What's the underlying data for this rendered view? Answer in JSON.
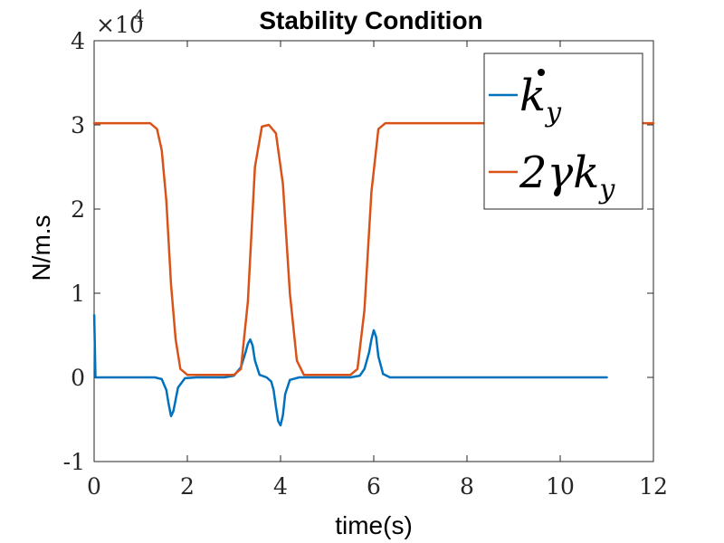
{
  "chart_data": {
    "type": "line",
    "title": "Stability Condition",
    "xlabel": "time(s)",
    "ylabel": "N/m.s",
    "xlim": [
      0,
      12
    ],
    "ylim": [
      -1,
      4
    ],
    "y_multiplier_label": "×10",
    "y_multiplier_exponent": "4",
    "xticks": [
      "0",
      "2",
      "4",
      "6",
      "8",
      "10",
      "12"
    ],
    "yticks": [
      "-1",
      "0",
      "1",
      "2",
      "3",
      "4"
    ],
    "legend_position": "top-right",
    "grid": false,
    "series": [
      {
        "name": "k̇_y",
        "legend_main": "k",
        "legend_sub": "y",
        "color": "#0072BD",
        "x": [
          0,
          0.001,
          0.03,
          0.1,
          0.5,
          1.0,
          1.3,
          1.45,
          1.55,
          1.6,
          1.65,
          1.7,
          1.8,
          1.95,
          2.2,
          2.8,
          3.0,
          3.15,
          3.25,
          3.3,
          3.35,
          3.4,
          3.45,
          3.55,
          3.7,
          3.8,
          3.85,
          3.9,
          3.95,
          4.0,
          4.05,
          4.1,
          4.2,
          4.4,
          5.0,
          5.5,
          5.7,
          5.8,
          5.9,
          5.95,
          6.0,
          6.05,
          6.1,
          6.2,
          6.35,
          6.6,
          8.0,
          10.0,
          11.0
        ],
        "values": [
          0.74,
          0.74,
          0.0,
          0.0,
          0.0,
          0.0,
          0.0,
          -0.02,
          -0.15,
          -0.32,
          -0.46,
          -0.4,
          -0.12,
          -0.01,
          0.0,
          0.0,
          0.02,
          0.12,
          0.3,
          0.4,
          0.45,
          0.38,
          0.2,
          0.03,
          0.0,
          -0.05,
          -0.15,
          -0.35,
          -0.52,
          -0.57,
          -0.45,
          -0.2,
          -0.03,
          0.0,
          0.0,
          0.0,
          0.02,
          0.1,
          0.3,
          0.45,
          0.56,
          0.48,
          0.25,
          0.04,
          0.0,
          0.0,
          0.0,
          0.0,
          0.0
        ]
      },
      {
        "name": "2γk_y",
        "legend_main": "2γk",
        "legend_sub": "y",
        "color": "#D95319",
        "x": [
          0,
          1.2,
          1.35,
          1.45,
          1.55,
          1.65,
          1.75,
          1.85,
          2.0,
          2.2,
          3.0,
          3.15,
          3.3,
          3.45,
          3.6,
          3.75,
          3.9,
          4.05,
          4.2,
          4.35,
          4.5,
          5.5,
          5.65,
          5.8,
          5.95,
          6.1,
          6.25,
          6.5,
          8.0,
          10.0,
          11.0,
          12.0
        ],
        "values": [
          3.02,
          3.02,
          2.95,
          2.7,
          2.1,
          1.1,
          0.45,
          0.1,
          0.03,
          0.03,
          0.03,
          0.1,
          0.9,
          2.5,
          2.98,
          3.0,
          2.9,
          2.3,
          1.0,
          0.2,
          0.03,
          0.03,
          0.1,
          0.8,
          2.2,
          2.95,
          3.02,
          3.02,
          3.02,
          3.02,
          3.02,
          3.02
        ]
      }
    ]
  }
}
